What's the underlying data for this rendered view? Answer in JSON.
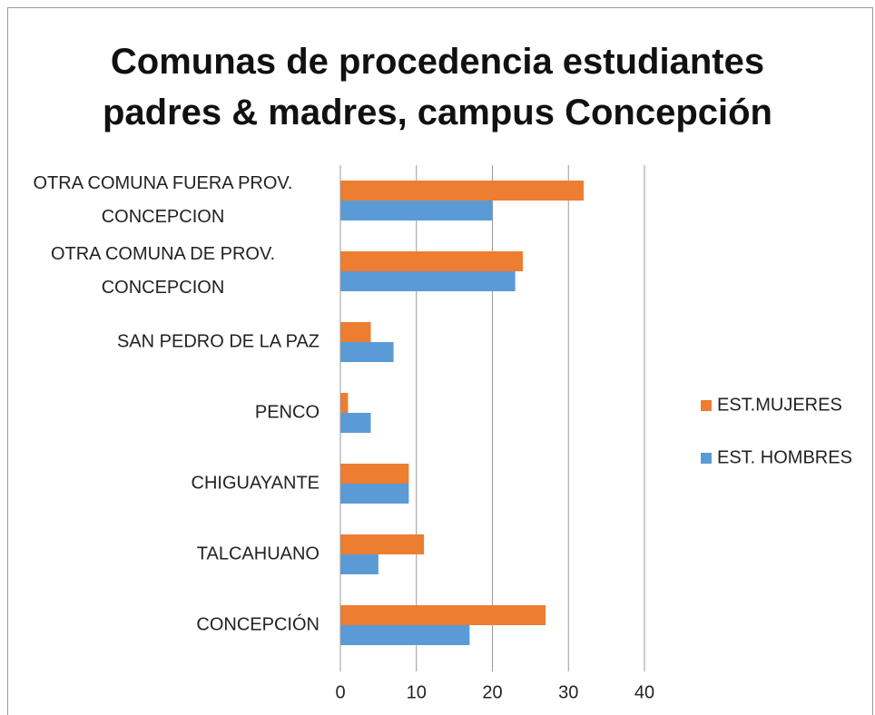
{
  "chart_data": {
    "type": "bar",
    "orientation": "horizontal",
    "title": "Comunas de procedencia estudiantes padres & madres, campus Concepción",
    "categories": [
      "OTRA COMUNA FUERA PROV. CONCEPCION",
      "OTRA COMUNA DE PROV. CONCEPCION",
      "SAN PEDRO DE LA PAZ",
      "PENCO",
      "CHIGUAYANTE",
      "TALCAHUANO",
      "CONCEPCIÓN"
    ],
    "series": [
      {
        "name": "EST.MUJERES",
        "color": "#ed7d31",
        "values": [
          32,
          24,
          4,
          1,
          9,
          11,
          27
        ]
      },
      {
        "name": "EST. HOMBRES",
        "color": "#5b9bd5",
        "values": [
          20,
          23,
          7,
          4,
          9,
          5,
          17
        ]
      }
    ],
    "xlim": [
      0,
      40
    ],
    "xticks": [
      0,
      10,
      20,
      30,
      40
    ],
    "grid": true,
    "legend": "right"
  }
}
